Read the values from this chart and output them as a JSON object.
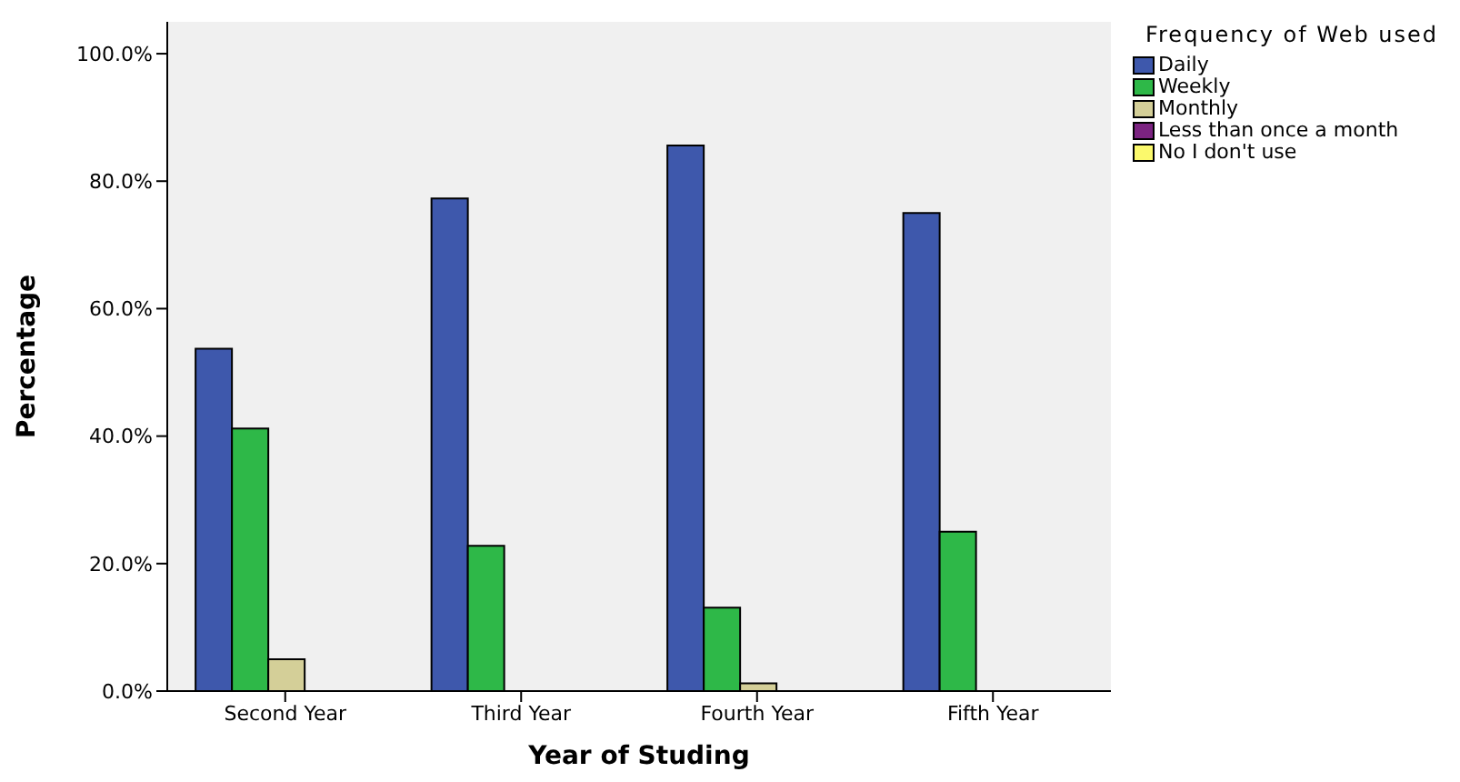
{
  "chart_data": {
    "type": "bar",
    "xlabel": "Year of Studing",
    "ylabel": "Percentage",
    "legend_title": "Frequency of Web used",
    "legend": "top right",
    "grid": false,
    "categories": [
      "Second Year",
      "Third Year",
      "Fourth Year",
      "Fifth Year"
    ],
    "ylim": [
      0,
      105
    ],
    "yticks": [
      {
        "value": 0,
        "label": "0.0%"
      },
      {
        "value": 20,
        "label": "20.0%"
      },
      {
        "value": 40,
        "label": "40.0%"
      },
      {
        "value": 60,
        "label": "60.0%"
      },
      {
        "value": 80,
        "label": "80.0%"
      },
      {
        "value": 100,
        "label": "100.0%"
      }
    ],
    "series": [
      {
        "name": "Daily",
        "color": "#3e58ac",
        "values": [
          53.7,
          77.3,
          85.6,
          75.0
        ]
      },
      {
        "name": "Weekly",
        "color": "#2eb848",
        "values": [
          41.2,
          22.8,
          13.1,
          25.0
        ]
      },
      {
        "name": "Monthly",
        "color": "#d4cf98",
        "values": [
          5.0,
          0,
          1.2,
          0
        ]
      },
      {
        "name": "Less than once a month",
        "color": "#7b2381",
        "values": [
          0,
          0,
          0,
          0
        ]
      },
      {
        "name": "No I don't use",
        "color": "#fbf96c",
        "values": [
          0,
          0,
          0,
          0
        ]
      }
    ]
  }
}
